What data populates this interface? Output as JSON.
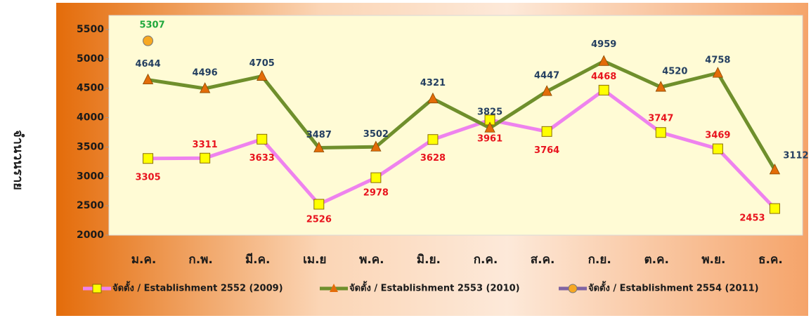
{
  "chart_data": {
    "type": "line",
    "y_label": "จำนวนราย",
    "categories": [
      "ม.ค.",
      "ก.พ.",
      "มี.ค.",
      "เม.ย",
      "พ.ค.",
      "มิ.ย.",
      "ก.ค.",
      "ส.ค.",
      "ก.ย.",
      "ต.ค.",
      "พ.ย.",
      "ธ.ค."
    ],
    "series": [
      {
        "name": "จัดตั้ง / Establishment 2552 (2009)",
        "color": "#ee82ee",
        "marker_color": "#ffff00",
        "label_color": "#e8141e",
        "values": [
          3305,
          3311,
          3633,
          2526,
          2978,
          3628,
          3961,
          3764,
          4468,
          3747,
          3469,
          2453
        ]
      },
      {
        "name": "จัดตั้ง / Establishment 2553 (2010)",
        "color": "#6f8f2c",
        "marker_color": "#e36c09",
        "label_color": "#243f60",
        "values": [
          4644,
          4496,
          4705,
          3487,
          3502,
          4321,
          3825,
          4447,
          4959,
          4520,
          4758,
          3112
        ]
      },
      {
        "name": "จัดตั้ง / Establishment 2554 (2011)",
        "color": "#8064a2",
        "marker_color": "#f7a823",
        "label_color": "#1fa83c",
        "values": [
          5307,
          null,
          null,
          null,
          null,
          null,
          null,
          null,
          null,
          null,
          null,
          null
        ]
      }
    ],
    "ylim": [
      2000,
      5500
    ],
    "yticks": [
      2000,
      2500,
      3000,
      3500,
      4000,
      4500,
      5000,
      5500
    ]
  }
}
